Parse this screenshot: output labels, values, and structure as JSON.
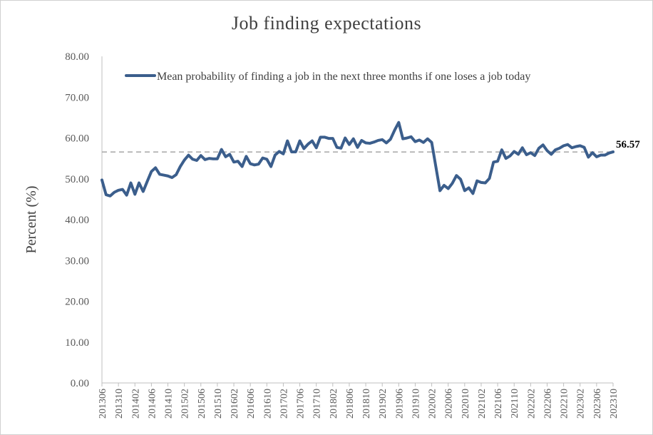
{
  "chart_data": {
    "type": "line",
    "title": "Job finding expectations",
    "ylabel": "Percent (%)",
    "xlabel": "",
    "ylim": [
      0,
      80
    ],
    "yticks": [
      "0.00",
      "10.00",
      "20.00",
      "30.00",
      "40.00",
      "50.00",
      "60.00",
      "70.00",
      "80.00"
    ],
    "xticks": [
      "201306",
      "201310",
      "201402",
      "201406",
      "201410",
      "201502",
      "201506",
      "201510",
      "201602",
      "201606",
      "201610",
      "201702",
      "201706",
      "201710",
      "201802",
      "201806",
      "201810",
      "201902",
      "201906",
      "201910",
      "202002",
      "202006",
      "202010",
      "202102",
      "202106",
      "202110",
      "202202",
      "202206",
      "202210",
      "202302",
      "202306",
      "202310"
    ],
    "grid": false,
    "legend_position": "top",
    "series": [
      {
        "name": "Mean probability of finding a job in the next three months if one loses a job today",
        "color": "#3b5e8c",
        "start": "201306",
        "values": [
          49.7,
          46.1,
          45.8,
          46.7,
          47.2,
          47.4,
          46.0,
          49.0,
          46.2,
          49.0,
          46.9,
          49.4,
          51.8,
          52.7,
          51.1,
          50.9,
          50.7,
          50.3,
          51.0,
          53.0,
          54.6,
          55.8,
          54.8,
          54.5,
          55.7,
          54.7,
          55.0,
          54.9,
          54.9,
          57.2,
          55.4,
          56.0,
          54.1,
          54.3,
          53.0,
          55.5,
          53.7,
          53.4,
          53.6,
          55.1,
          54.8,
          53.0,
          55.8,
          56.7,
          56.1,
          59.3,
          56.6,
          56.6,
          59.3,
          57.4,
          58.5,
          59.3,
          57.6,
          60.2,
          60.2,
          59.9,
          59.9,
          57.7,
          57.5,
          60.0,
          58.4,
          59.8,
          57.7,
          59.4,
          58.8,
          58.7,
          59.0,
          59.4,
          59.6,
          58.8,
          59.7,
          61.9,
          63.8,
          59.8,
          60.0,
          60.3,
          59.1,
          59.5,
          58.9,
          59.8,
          58.9,
          53.0,
          47.1,
          48.4,
          47.6,
          48.9,
          50.8,
          49.9,
          47.1,
          47.8,
          46.4,
          49.5,
          49.1,
          49.0,
          50.1,
          54.1,
          54.3,
          57.1,
          55.0,
          55.6,
          56.7,
          56.0,
          57.6,
          55.9,
          56.4,
          55.7,
          57.5,
          58.3,
          56.9,
          56.0,
          57.1,
          57.5,
          58.1,
          58.4,
          57.6,
          57.9,
          58.1,
          57.7,
          55.3,
          56.4,
          55.4,
          55.8,
          55.8,
          56.3,
          56.6
        ]
      }
    ],
    "reference_line": {
      "value": 56.57,
      "label": "56.57",
      "style": "dashed",
      "color": "#a6a6a6"
    }
  }
}
